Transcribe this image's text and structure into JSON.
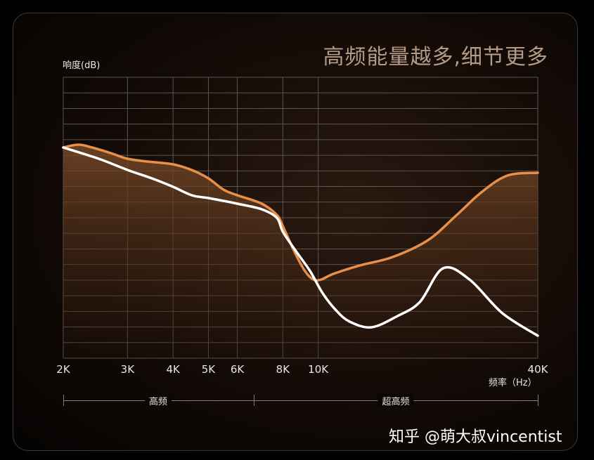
{
  "headline": "高频能量越多,细节更多",
  "watermark": "知乎 @萌大叔vincentist",
  "colors": {
    "panel_bg": "#120a06",
    "orange_line": "#e8904a",
    "white_line": "#ffffff",
    "grid": "#5a5550"
  },
  "bands": [
    {
      "label": "高频"
    },
    {
      "label": "超高频"
    }
  ],
  "chart_data": {
    "type": "line",
    "title": "",
    "xlabel": "频率（Hz）",
    "ylabel": "响度(dB)",
    "x_scale": "log",
    "xlim": [
      2000,
      40000
    ],
    "x_ticks": [
      {
        "value": 2000,
        "label": "2K"
      },
      {
        "value": 3000,
        "label": "3K"
      },
      {
        "value": 4000,
        "label": "4K"
      },
      {
        "value": 5000,
        "label": "5K"
      },
      {
        "value": 6000,
        "label": "6K"
      },
      {
        "value": 8000,
        "label": "8K"
      },
      {
        "value": 10000,
        "label": "10K"
      },
      {
        "value": 40000,
        "label": "40K"
      }
    ],
    "y_ticks_printed": false,
    "grid": true,
    "series": [
      {
        "color": "#e8904a",
        "filled": true,
        "x": [
          2000,
          2200,
          2400,
          2700,
          3000,
          3400,
          4000,
          4500,
          5000,
          5500,
          6000,
          7000,
          7700,
          8000,
          8600,
          9200,
          9700,
          10200,
          11000,
          13000,
          16000,
          20000,
          24000,
          28000,
          33000,
          40000
        ],
        "y": [
          0.75,
          0.76,
          0.75,
          0.73,
          0.71,
          0.7,
          0.69,
          0.67,
          0.64,
          0.6,
          0.58,
          0.55,
          0.51,
          0.47,
          0.38,
          0.31,
          0.28,
          0.28,
          0.3,
          0.33,
          0.36,
          0.42,
          0.51,
          0.59,
          0.65,
          0.66
        ]
      },
      {
        "color": "#ffffff",
        "filled": false,
        "x": [
          2000,
          2500,
          3000,
          3500,
          4000,
          4500,
          5000,
          5500,
          6000,
          7000,
          7700,
          8000,
          8700,
          9500,
          10300,
          11200,
          12200,
          14000,
          16500,
          19000,
          22000,
          26000,
          32000,
          40000
        ],
        "y": [
          0.75,
          0.71,
          0.67,
          0.64,
          0.61,
          0.58,
          0.57,
          0.56,
          0.55,
          0.53,
          0.5,
          0.45,
          0.38,
          0.31,
          0.23,
          0.17,
          0.13,
          0.11,
          0.15,
          0.2,
          0.32,
          0.28,
          0.16,
          0.08
        ]
      }
    ]
  }
}
